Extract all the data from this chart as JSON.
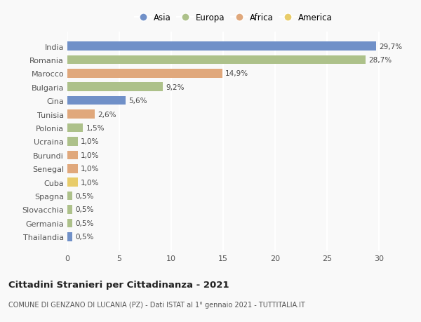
{
  "countries": [
    "India",
    "Romania",
    "Marocco",
    "Bulgaria",
    "Cina",
    "Tunisia",
    "Polonia",
    "Ucraina",
    "Burundi",
    "Senegal",
    "Cuba",
    "Spagna",
    "Slovacchia",
    "Germania",
    "Thailandia"
  ],
  "values": [
    29.7,
    28.7,
    14.9,
    9.2,
    5.6,
    2.6,
    1.5,
    1.0,
    1.0,
    1.0,
    1.0,
    0.5,
    0.5,
    0.5,
    0.5
  ],
  "labels": [
    "29,7%",
    "28,7%",
    "14,9%",
    "9,2%",
    "5,6%",
    "2,6%",
    "1,5%",
    "1,0%",
    "1,0%",
    "1,0%",
    "1,0%",
    "0,5%",
    "0,5%",
    "0,5%",
    "0,5%"
  ],
  "continents": [
    "Asia",
    "Europa",
    "Africa",
    "Europa",
    "Asia",
    "Africa",
    "Europa",
    "Europa",
    "Africa",
    "Africa",
    "America",
    "Europa",
    "Europa",
    "Europa",
    "Asia"
  ],
  "continent_colors": {
    "Asia": "#7090c8",
    "Europa": "#adc18a",
    "Africa": "#e0a87c",
    "America": "#e8cc6a"
  },
  "legend_order": [
    "Asia",
    "Europa",
    "Africa",
    "America"
  ],
  "title": "Cittadini Stranieri per Cittadinanza - 2021",
  "subtitle": "COMUNE DI GENZANO DI LUCANIA (PZ) - Dati ISTAT al 1° gennaio 2021 - TUTTITALIA.IT",
  "xlim": [
    0,
    32
  ],
  "xticks": [
    0,
    5,
    10,
    15,
    20,
    25,
    30
  ],
  "background_color": "#f9f9f9",
  "grid_color": "#ffffff",
  "bar_height": 0.65
}
